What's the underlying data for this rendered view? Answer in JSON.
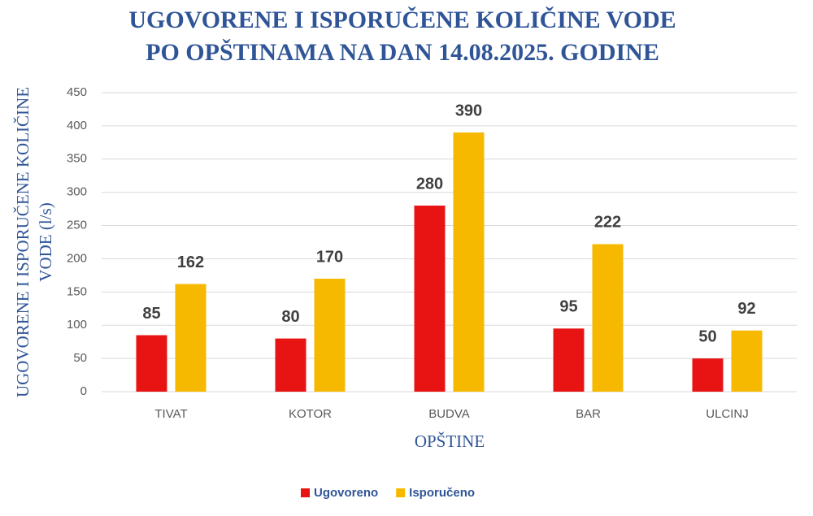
{
  "chart_data": {
    "type": "bar",
    "title": [
      "UGOVORENE I ISPORUČENE KOLIČINE VODE",
      "PO OPŠTINAMA NA DAN 14.08.2025. GODINE"
    ],
    "y_label": [
      "UGOVORENE I ISPORUČENE KOLIČINE",
      "VODE (l/s)"
    ],
    "x_label": "OPŠTINE",
    "categories": [
      "TIVAT",
      "KOTOR",
      "BUDVA",
      "BAR",
      "ULCINJ"
    ],
    "series": [
      {
        "name": "Ugovoreno",
        "color": "#e81414",
        "values": [
          85,
          80,
          280,
          95,
          50
        ]
      },
      {
        "name": "Isporučeno",
        "color": "#f6b900",
        "values": [
          162,
          170,
          390,
          222,
          92
        ]
      }
    ],
    "ylim": [
      0,
      450
    ],
    "yticks": [
      0,
      50,
      100,
      150,
      200,
      250,
      300,
      350,
      400,
      450
    ],
    "grid": true,
    "legend": "bottom"
  }
}
